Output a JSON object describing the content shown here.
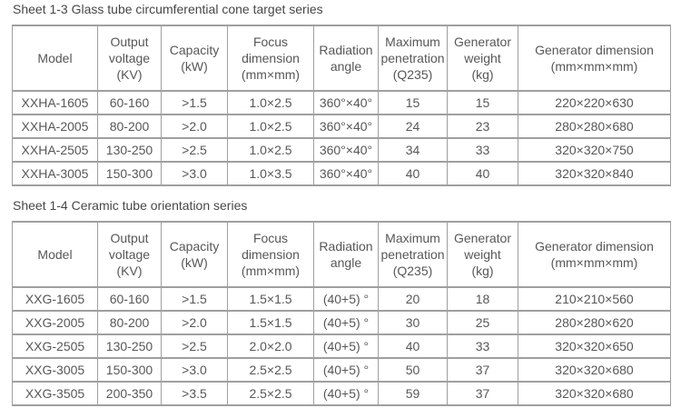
{
  "colors": {
    "border": "#9f9f9f",
    "text": "#575757",
    "title": "#474747",
    "background": "#ffffff"
  },
  "tables": [
    {
      "title": "Sheet 1-3 Glass tube circumferential cone target series",
      "headers": [
        "Model",
        "Output\nvoltage\n(KV)",
        "Capacity\n(kW)",
        "Focus\ndimension\n(mm×mm)",
        "Radiation\nangle",
        "Maximum\npenetration\n(Q235)",
        "Generator\nweight\n(kg)",
        "Generator dimension\n(mm×mm×mm)"
      ],
      "rows": [
        [
          "XXHA-1605",
          "60-160",
          ">1.5",
          "1.0×2.5",
          "360°×40°",
          "15",
          "15",
          "220×220×630"
        ],
        [
          "XXHA-2005",
          "80-200",
          ">2.0",
          "1.0×2.5",
          "360°×40°",
          "24",
          "23",
          "280×280×680"
        ],
        [
          "XXHA-2505",
          "130-250",
          ">2.5",
          "1.0×2.5",
          "360°×40°",
          "34",
          "33",
          "320×320×750"
        ],
        [
          "XXHA-3005",
          "150-300",
          ">3.0",
          "1.0×3.5",
          "360°×40°",
          "40",
          "40",
          "320×320×840"
        ]
      ]
    },
    {
      "title": "Sheet 1-4 Ceramic tube orientation series",
      "headers": [
        "Model",
        "Output\nvoltage\n(KV)",
        "Capacity\n(kW)",
        "Focus\ndimension\n(mm×mm)",
        "Radiation\nangle",
        "Maximum\npenetration\n(Q235)",
        "Generator\nweight\n(kg)",
        "Generator dimension\n(mm×mm×mm)"
      ],
      "rows": [
        [
          "XXG-1605",
          "60-160",
          ">1.5",
          "1.5×1.5",
          "(40+5) °",
          "20",
          "18",
          "210×210×560"
        ],
        [
          "XXG-2005",
          "80-200",
          ">2.0",
          "1.5×1.5",
          "(40+5) °",
          "30",
          "25",
          "280×280×620"
        ],
        [
          "XXG-2505",
          "130-250",
          ">2.5",
          "2.0×2.0",
          "(40+5) °",
          "40",
          "33",
          "320×320×650"
        ],
        [
          "XXG-3005",
          "150-300",
          ">3.0",
          "2.5×2.5",
          "(40+5) °",
          "50",
          "37",
          "320×320×680"
        ],
        [
          "XXG-3505",
          "200-350",
          ">3.5",
          "2.5×2.5",
          "(40+5) °",
          "59",
          "37",
          "320×320×680"
        ]
      ]
    }
  ]
}
